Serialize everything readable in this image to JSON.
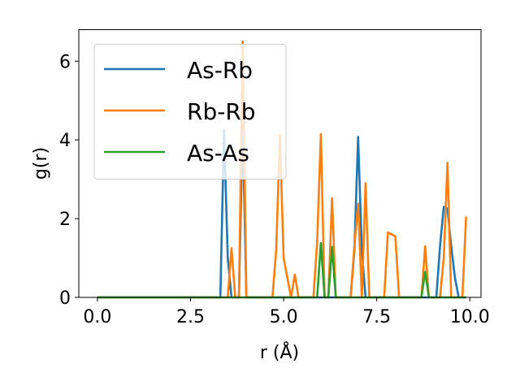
{
  "chart_data": {
    "type": "line",
    "xlabel": "r (Å)",
    "ylabel": "g(r)",
    "xlim": [
      -0.5,
      10.3
    ],
    "ylim": [
      0,
      6.8
    ],
    "xticks": [
      "0.0",
      "2.5",
      "5.0",
      "7.5",
      "10.0"
    ],
    "yticks": [
      "0",
      "2",
      "4",
      "6"
    ],
    "grid": false,
    "legend_position": "top-left",
    "series": [
      {
        "name": "As-Rb",
        "color": "#1f77b4",
        "x": [
          0.0,
          3.3,
          3.4,
          3.5,
          3.6,
          3.8,
          3.9,
          4.0,
          4.1,
          6.8,
          6.9,
          7.0,
          7.1,
          7.2,
          9.1,
          9.2,
          9.3,
          9.4,
          9.5,
          9.6,
          9.7,
          9.9
        ],
        "y": [
          0,
          0,
          4.25,
          1.0,
          0,
          0,
          4.4,
          0,
          0,
          0,
          1.2,
          4.08,
          1.2,
          0,
          0,
          1.3,
          2.3,
          2.25,
          1.3,
          0.5,
          0,
          0
        ]
      },
      {
        "name": "Rb-Rb",
        "color": "#ff7f0e",
        "x": [
          0.0,
          3.5,
          3.6,
          3.7,
          3.8,
          3.9,
          4.0,
          4.7,
          4.8,
          4.9,
          5.0,
          5.2,
          5.3,
          5.4,
          5.8,
          5.9,
          6.0,
          6.1,
          6.2,
          6.3,
          6.4,
          6.8,
          6.9,
          7.0,
          7.1,
          7.2,
          7.3,
          7.6,
          7.7,
          7.8,
          8.0,
          8.1,
          8.7,
          8.8,
          8.9,
          9.2,
          9.3,
          9.4,
          9.5,
          9.6,
          9.7,
          9.8,
          9.9
        ],
        "y": [
          0,
          0,
          1.25,
          0,
          0,
          6.5,
          0,
          0,
          1.2,
          4.12,
          1.0,
          0,
          0.58,
          0,
          0,
          1.4,
          4.15,
          0,
          0,
          2.52,
          0,
          0,
          1.3,
          2.38,
          0,
          2.9,
          0,
          0,
          0,
          1.65,
          1.55,
          0,
          0,
          1.3,
          0,
          0,
          1.0,
          3.42,
          0,
          0,
          0,
          0,
          2.05
        ]
      },
      {
        "name": "As-As",
        "color": "#2ca02c",
        "x": [
          0.0,
          5.9,
          6.0,
          6.1,
          6.2,
          6.3,
          6.4,
          8.7,
          8.8,
          8.9,
          9.9
        ],
        "y": [
          0,
          0,
          1.38,
          0,
          0,
          1.28,
          0,
          0,
          0.65,
          0,
          0
        ]
      }
    ]
  }
}
